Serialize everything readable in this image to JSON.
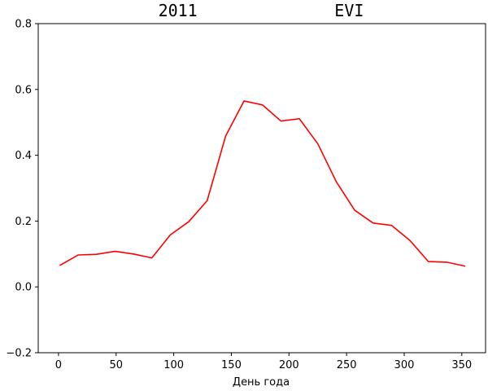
{
  "chart_data": {
    "type": "line",
    "title": "2011              EVI",
    "xlabel": "День года",
    "ylabel": "",
    "xlim": [
      -17.6,
      370.6
    ],
    "ylim": [
      -0.2,
      0.8
    ],
    "xticks": [
      0,
      50,
      100,
      150,
      200,
      250,
      300,
      350
    ],
    "yticks": [
      -0.2,
      0.0,
      0.2,
      0.4,
      0.6,
      0.8
    ],
    "xtick_labels": [
      "0",
      "50",
      "100",
      "150",
      "200",
      "250",
      "300",
      "350"
    ],
    "ytick_labels": [
      "−0.2",
      "0.0",
      "0.2",
      "0.4",
      "0.6",
      "0.8"
    ],
    "grid": false,
    "legend": "none",
    "series": [
      {
        "color": "#ff0000",
        "x": [
          1,
          17,
          33,
          49,
          65,
          81,
          97,
          113,
          129,
          145,
          161,
          177,
          193,
          209,
          225,
          241,
          257,
          273,
          289,
          305,
          321,
          337,
          353
        ],
        "y": [
          0.065,
          0.097,
          0.099,
          0.108,
          0.1,
          0.088,
          0.158,
          0.198,
          0.262,
          0.458,
          0.565,
          0.553,
          0.504,
          0.511,
          0.435,
          0.32,
          0.233,
          0.194,
          0.187,
          0.141,
          0.077,
          0.075,
          0.063
        ]
      }
    ]
  }
}
